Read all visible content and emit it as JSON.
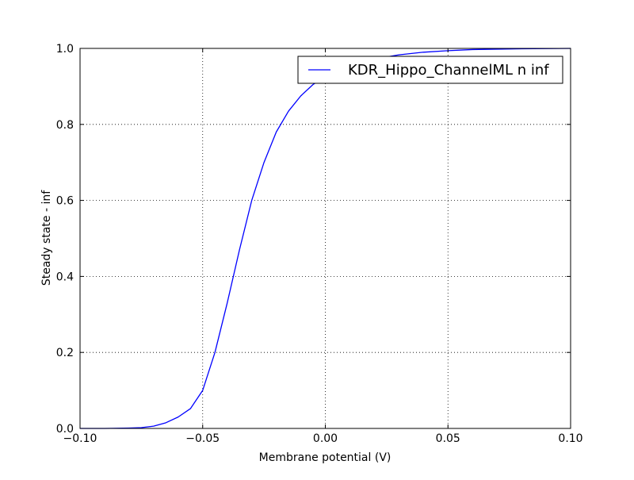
{
  "chart_data": {
    "type": "line",
    "xlabel": "Membrane potential (V)",
    "ylabel": "Steady state - inf",
    "xlim": [
      -0.1,
      0.1
    ],
    "ylim": [
      0.0,
      1.0
    ],
    "x_ticks": [
      -0.1,
      -0.05,
      0.0,
      0.05,
      0.1
    ],
    "x_tick_labels": [
      "−0.10",
      "−0.05",
      "0.00",
      "0.05",
      "0.10"
    ],
    "y_ticks": [
      0.0,
      0.2,
      0.4,
      0.6,
      0.8,
      1.0
    ],
    "y_tick_labels": [
      "0.0",
      "0.2",
      "0.4",
      "0.6",
      "0.8",
      "1.0"
    ],
    "grid": true,
    "legend_position": "top-right",
    "series": [
      {
        "name": "KDR_Hippo_ChannelML n inf",
        "color": "#0000ff",
        "x": [
          -0.1,
          -0.09,
          -0.08,
          -0.075,
          -0.07,
          -0.065,
          -0.06,
          -0.055,
          -0.05,
          -0.045,
          -0.04,
          -0.035,
          -0.03,
          -0.025,
          -0.02,
          -0.015,
          -0.01,
          -0.005,
          0.0,
          0.01,
          0.02,
          0.03,
          0.04,
          0.05,
          0.06,
          0.07,
          0.08,
          0.09,
          0.1
        ],
        "y": [
          0.0,
          0.0,
          0.001,
          0.002,
          0.006,
          0.015,
          0.03,
          0.052,
          0.1,
          0.2,
          0.33,
          0.47,
          0.6,
          0.7,
          0.78,
          0.835,
          0.875,
          0.905,
          0.925,
          0.955,
          0.972,
          0.983,
          0.99,
          0.994,
          0.997,
          0.998,
          0.999,
          0.9995,
          1.0
        ]
      }
    ]
  }
}
